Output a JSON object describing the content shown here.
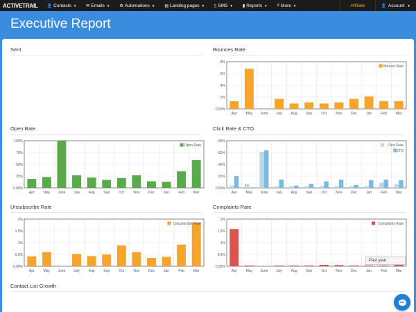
{
  "nav": {
    "logo": "ACTIVETRAIL",
    "items": [
      {
        "label": "Contacts",
        "icon": "contacts-icon",
        "glyph": "👤"
      },
      {
        "label": "Emails",
        "icon": "email-icon",
        "glyph": "✉"
      },
      {
        "label": "Automations",
        "icon": "automation-icon",
        "glyph": "⚙"
      },
      {
        "label": "Landing pages",
        "icon": "landing-page-icon",
        "glyph": "▤"
      },
      {
        "label": "SMS",
        "icon": "sms-icon",
        "glyph": "▯"
      },
      {
        "label": "Reports",
        "icon": "reports-icon",
        "glyph": "▮"
      },
      {
        "label": "More",
        "icon": "more-icon",
        "glyph": "≡"
      }
    ],
    "affiliate": "Affiliate",
    "account": "Account"
  },
  "page": {
    "title": "Executive Report"
  },
  "sections": {
    "sent": "Sent",
    "bounces": "Bounces Rate",
    "open": "Open Rate",
    "click": "Click Rate & CTO",
    "unsub": "Unsubscribe Rate",
    "complaints": "Complaints Rate",
    "growth": "Contact List Growth"
  },
  "filter": {
    "selected": "Past year"
  },
  "colors": {
    "orange": "#f5a42c",
    "green": "#5aa94c",
    "lightblue": "#b7d8ec",
    "blue": "#7cb9e0",
    "red": "#d9534f"
  },
  "chart_data": [
    {
      "type": "bar",
      "title": "Bounces Rate",
      "categories": [
        "Apr",
        "May",
        "June",
        "July",
        "Aug",
        "Sep",
        "Oct",
        "Nov",
        "Dec",
        "Jan",
        "Feb",
        "Mar"
      ],
      "series": [
        {
          "name": "Bounce Rate",
          "color": "#f5a42c",
          "values": [
            1.3,
            6.8,
            0,
            1.7,
            0.9,
            1.1,
            0.9,
            1.1,
            1.7,
            2.1,
            1.3,
            1.3
          ]
        }
      ],
      "yticks": [
        "0.00%",
        "2%",
        "4%",
        "6%",
        "8%"
      ],
      "ylim": [
        0,
        8
      ],
      "legend": "top-right"
    },
    {
      "type": "bar",
      "title": "Open Rate",
      "categories": [
        "Apr",
        "May",
        "June",
        "July",
        "Aug",
        "Sep",
        "Oct",
        "Nov",
        "Dec",
        "Jan",
        "Feb",
        "Mar"
      ],
      "series": [
        {
          "name": "Open Rate",
          "color": "#5aa94c",
          "values": [
            19,
            23,
            100,
            27,
            22,
            17,
            21,
            27,
            14,
            13,
            35,
            59
          ]
        }
      ],
      "yticks": [
        "0.00%",
        "25%",
        "50%",
        "75%",
        "100%"
      ],
      "ylim": [
        0,
        100
      ],
      "legend": "top-right"
    },
    {
      "type": "bar",
      "title": "Click Rate & CTO",
      "categories": [
        "Apr",
        "May",
        "June",
        "July",
        "Aug",
        "Sep",
        "Oct",
        "Nov",
        "Dec",
        "Jan",
        "Feb",
        "Mar"
      ],
      "series": [
        {
          "name": "Click Rate",
          "color": "#b7d8ec",
          "values": [
            4,
            7,
            61,
            3,
            3,
            3,
            3,
            3,
            3,
            3,
            9,
            6
          ]
        },
        {
          "name": "CTO",
          "color": "#7cb9e0",
          "values": [
            20,
            0,
            64,
            14,
            4,
            7,
            11,
            14,
            5,
            13,
            14,
            13
          ]
        }
      ],
      "yticks": [
        "0.00%",
        "20%",
        "40%",
        "60%",
        "80%"
      ],
      "ylim": [
        0,
        80
      ],
      "legend": "top-right"
    },
    {
      "type": "bar",
      "title": "Unsubscribe Rate",
      "categories": [
        "Apr",
        "May",
        "June",
        "July",
        "Aug",
        "Sep",
        "Oct",
        "Nov",
        "Dec",
        "Jan",
        "Feb",
        "Mar"
      ],
      "series": [
        {
          "name": "Unsubscribe Rate",
          "color": "#f5a42c",
          "values": [
            0.42,
            0.6,
            0,
            0.52,
            0.43,
            0.5,
            0.88,
            0.6,
            0.35,
            0.4,
            0.92,
            1.85
          ]
        }
      ],
      "yticks": [
        "0.00%",
        "0.5%",
        "1%",
        "1.5%",
        "2%"
      ],
      "ylim": [
        0,
        2
      ],
      "legend": "top-right"
    },
    {
      "type": "bar",
      "title": "Complaints Rate",
      "categories": [
        "Apr",
        "May",
        "June",
        "July",
        "Aug",
        "Sep",
        "Oct",
        "Nov",
        "Dec",
        "Jan",
        "Feb",
        "Mar"
      ],
      "series": [
        {
          "name": "Complaints Rate",
          "color": "#d9534f",
          "values": [
            1.58,
            0.03,
            0,
            0.03,
            0.03,
            0.03,
            0.06,
            0.05,
            0.03,
            0.03,
            0.03,
            0.06
          ]
        }
      ],
      "yticks": [
        "0.00%",
        "0.5%",
        "1%",
        "1.5%",
        "2%"
      ],
      "ylim": [
        0,
        2
      ],
      "legend": "top-right"
    }
  ]
}
